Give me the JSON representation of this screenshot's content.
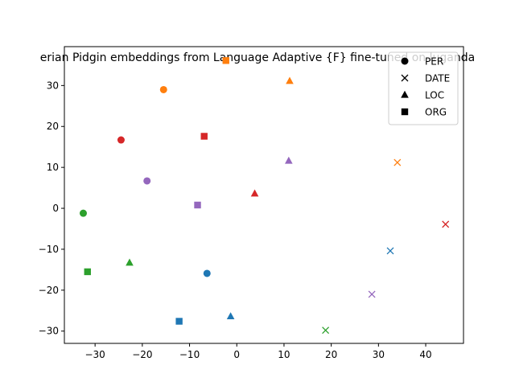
{
  "chart_data": {
    "type": "scatter",
    "title": "erian Pidgin embeddings from Language Adaptive {F} fine-tuned on luganda",
    "xlabel": "",
    "ylabel": "",
    "xlim": [
      -36.5,
      48.0
    ],
    "ylim": [
      -33.0,
      39.5
    ],
    "xticks": [
      -30,
      -20,
      -10,
      0,
      10,
      20,
      30,
      40
    ],
    "yticks": [
      -30,
      -20,
      -10,
      0,
      10,
      20,
      30
    ],
    "grid": false,
    "legend_position": "top-right",
    "legend": [
      {
        "label": "PER",
        "marker": "circle"
      },
      {
        "label": "DATE",
        "marker": "x"
      },
      {
        "label": "LOC",
        "marker": "triangle"
      },
      {
        "label": "ORG",
        "marker": "square"
      }
    ],
    "colors": {
      "blue": "#1f77b4",
      "orange": "#ff7f0e",
      "green": "#2ca02c",
      "red": "#d62728",
      "purple": "#9467bd"
    },
    "points": [
      {
        "x": -15.5,
        "y": 29.0,
        "marker": "circle",
        "color": "orange"
      },
      {
        "x": -24.5,
        "y": 16.7,
        "marker": "circle",
        "color": "red"
      },
      {
        "x": -19.0,
        "y": 6.7,
        "marker": "circle",
        "color": "purple"
      },
      {
        "x": -32.5,
        "y": -1.2,
        "marker": "circle",
        "color": "green"
      },
      {
        "x": -6.3,
        "y": -15.9,
        "marker": "circle",
        "color": "blue"
      },
      {
        "x": 34.0,
        "y": 11.2,
        "marker": "x",
        "color": "orange"
      },
      {
        "x": 44.2,
        "y": -3.9,
        "marker": "x",
        "color": "red"
      },
      {
        "x": 32.5,
        "y": -10.4,
        "marker": "x",
        "color": "blue"
      },
      {
        "x": 28.6,
        "y": -21.0,
        "marker": "x",
        "color": "purple"
      },
      {
        "x": 18.8,
        "y": -29.8,
        "marker": "x",
        "color": "green"
      },
      {
        "x": 11.2,
        "y": 31.1,
        "marker": "triangle",
        "color": "orange"
      },
      {
        "x": 11.0,
        "y": 11.6,
        "marker": "triangle",
        "color": "purple"
      },
      {
        "x": 3.8,
        "y": 3.6,
        "marker": "triangle",
        "color": "red"
      },
      {
        "x": -22.7,
        "y": -13.3,
        "marker": "triangle",
        "color": "green"
      },
      {
        "x": -1.3,
        "y": -26.4,
        "marker": "triangle",
        "color": "blue"
      },
      {
        "x": -2.3,
        "y": 36.1,
        "marker": "square",
        "color": "orange"
      },
      {
        "x": -6.9,
        "y": 17.6,
        "marker": "square",
        "color": "red"
      },
      {
        "x": -8.3,
        "y": 0.8,
        "marker": "square",
        "color": "purple"
      },
      {
        "x": -31.6,
        "y": -15.5,
        "marker": "square",
        "color": "green"
      },
      {
        "x": -12.2,
        "y": -27.6,
        "marker": "square",
        "color": "blue"
      }
    ]
  }
}
